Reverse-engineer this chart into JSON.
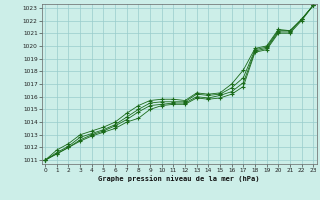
{
  "x": [
    0,
    1,
    2,
    3,
    4,
    5,
    6,
    7,
    8,
    9,
    10,
    11,
    12,
    13,
    14,
    15,
    16,
    17,
    18,
    19,
    20,
    21,
    22,
    23
  ],
  "line1": [
    1011.0,
    1011.5,
    1012.0,
    1012.5,
    1012.9,
    1013.2,
    1013.5,
    1014.0,
    1014.3,
    1015.0,
    1015.3,
    1015.4,
    1015.4,
    1015.9,
    1015.8,
    1015.9,
    1016.2,
    1016.8,
    1019.5,
    1019.7,
    1021.0,
    1021.0,
    1022.0,
    1023.2
  ],
  "line2": [
    1011.0,
    1011.5,
    1012.0,
    1012.6,
    1013.0,
    1013.3,
    1013.7,
    1014.2,
    1014.8,
    1015.3,
    1015.4,
    1015.5,
    1015.5,
    1016.0,
    1015.9,
    1016.1,
    1016.4,
    1017.1,
    1019.6,
    1019.8,
    1021.1,
    1021.1,
    1022.1,
    1023.2
  ],
  "line3": [
    1011.0,
    1011.6,
    1012.1,
    1012.8,
    1013.1,
    1013.4,
    1013.8,
    1014.4,
    1015.0,
    1015.5,
    1015.6,
    1015.6,
    1015.6,
    1016.2,
    1016.1,
    1016.2,
    1016.7,
    1017.5,
    1019.7,
    1019.9,
    1021.2,
    1021.2,
    1022.1,
    1023.2
  ],
  "line4": [
    1011.0,
    1011.8,
    1012.3,
    1013.0,
    1013.3,
    1013.6,
    1014.0,
    1014.7,
    1015.3,
    1015.7,
    1015.8,
    1015.8,
    1015.7,
    1016.3,
    1016.2,
    1016.3,
    1017.0,
    1018.1,
    1019.8,
    1020.0,
    1021.3,
    1021.2,
    1022.1,
    1023.2
  ],
  "ylim_min": 1011,
  "ylim_max": 1023,
  "yticks": [
    1011,
    1012,
    1013,
    1014,
    1015,
    1016,
    1017,
    1018,
    1019,
    1020,
    1021,
    1022,
    1023
  ],
  "xticks": [
    0,
    1,
    2,
    3,
    4,
    5,
    6,
    7,
    8,
    9,
    10,
    11,
    12,
    13,
    14,
    15,
    16,
    17,
    18,
    19,
    20,
    21,
    22,
    23
  ],
  "xlabel": "Graphe pression niveau de la mer (hPa)",
  "line_color": "#1a6b1a",
  "bg_color": "#cceee8",
  "grid_color": "#99cccc",
  "marker": "P",
  "marker_size": 3,
  "fig_width": 3.2,
  "fig_height": 2.0,
  "dpi": 100
}
